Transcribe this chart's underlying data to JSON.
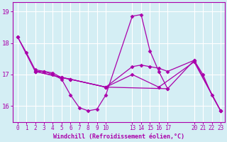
{
  "xlabel": "Windchill (Refroidissement éolien,°C)",
  "bg_color": "#d4eef4",
  "line_color": "#aa00aa",
  "grid_color": "#ffffff",
  "series": [
    [
      [
        0,
        18.2
      ],
      [
        1,
        17.7
      ],
      [
        2,
        17.15
      ],
      [
        3,
        17.1
      ],
      [
        4,
        17.0
      ],
      [
        5,
        16.85
      ],
      [
        6,
        16.35
      ],
      [
        7,
        15.95
      ],
      [
        8,
        15.85
      ],
      [
        9,
        15.9
      ],
      [
        10,
        16.35
      ],
      [
        13,
        18.85
      ],
      [
        14,
        18.9
      ],
      [
        15,
        17.75
      ],
      [
        16,
        17.1
      ],
      [
        17,
        16.55
      ]
    ],
    [
      [
        2,
        17.1
      ],
      [
        3,
        17.1
      ],
      [
        4,
        17.05
      ],
      [
        5,
        16.9
      ],
      [
        6,
        16.85
      ],
      [
        10,
        16.6
      ],
      [
        13,
        17.25
      ],
      [
        14,
        17.3
      ],
      [
        15,
        17.25
      ],
      [
        16,
        17.2
      ],
      [
        17,
        17.1
      ],
      [
        20,
        17.45
      ],
      [
        21,
        17.0
      ],
      [
        22,
        16.35
      ],
      [
        23,
        15.85
      ]
    ],
    [
      [
        2,
        17.1
      ],
      [
        5,
        16.9
      ],
      [
        6,
        16.85
      ],
      [
        10,
        16.6
      ],
      [
        13,
        17.0
      ],
      [
        16,
        16.6
      ],
      [
        20,
        17.4
      ],
      [
        23,
        15.85
      ]
    ],
    [
      [
        0,
        18.2
      ],
      [
        2,
        17.1
      ],
      [
        6,
        16.85
      ],
      [
        10,
        16.6
      ],
      [
        17,
        16.55
      ],
      [
        20,
        17.45
      ],
      [
        23,
        15.85
      ]
    ]
  ],
  "xtick_positions": [
    0,
    1,
    2,
    3,
    4,
    5,
    6,
    7,
    8,
    9,
    10,
    13,
    14,
    15,
    16,
    17,
    20,
    21,
    22,
    23
  ],
  "xtick_labels": [
    "0",
    "1",
    "2",
    "3",
    "4",
    "5",
    "6",
    "7",
    "8",
    "9",
    "10",
    "13",
    "14",
    "15",
    "16",
    "17",
    "20",
    "21",
    "22",
    "23"
  ],
  "yticks": [
    16,
    17,
    18,
    19
  ],
  "ylim": [
    15.5,
    19.3
  ],
  "xlim": [
    -0.5,
    23.5
  ]
}
